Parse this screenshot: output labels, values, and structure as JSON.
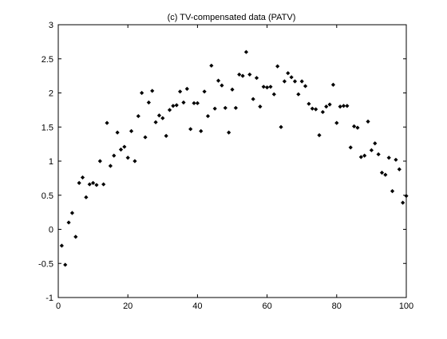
{
  "chart_data": {
    "type": "scatter",
    "title": "(c) TV-compensated data (PATV)",
    "xlabel": "",
    "ylabel": "",
    "xlim": [
      0,
      100
    ],
    "ylim": [
      -1,
      3
    ],
    "xticks": [
      0,
      20,
      40,
      60,
      80,
      100
    ],
    "yticks": [
      -1,
      -0.5,
      0,
      0.5,
      1,
      1.5,
      2,
      2.5,
      3
    ],
    "xtick_labels": [
      "0",
      "20",
      "40",
      "60",
      "80",
      "100"
    ],
    "ytick_labels": [
      "-1",
      "-0.5",
      "0",
      "0.5",
      "1",
      "1.5",
      "2",
      "2.5",
      "3"
    ],
    "grid": false,
    "legend": "none",
    "marker": "diamond",
    "color": "#000000",
    "series": [
      {
        "x": [
          1,
          2,
          3,
          4,
          5,
          6,
          7,
          8,
          9,
          10,
          11,
          12,
          13,
          14,
          15,
          16,
          17,
          18,
          19,
          20,
          21,
          22,
          23,
          24,
          25,
          26,
          27,
          28,
          29,
          30,
          31,
          32,
          33,
          34,
          35,
          36,
          37,
          38,
          39,
          40,
          41,
          42,
          43,
          44,
          45,
          46,
          47,
          48,
          49,
          50,
          51,
          52,
          53,
          54,
          55,
          56,
          57,
          58,
          59,
          60,
          61,
          62,
          63,
          64,
          65,
          66,
          67,
          68,
          69,
          70,
          71,
          72,
          73,
          74,
          75,
          76,
          77,
          78,
          79,
          80,
          81,
          82,
          83,
          84,
          85,
          86,
          87,
          88,
          89,
          90,
          91,
          92,
          93,
          94,
          95,
          96,
          97,
          98,
          99,
          100
        ],
        "y": [
          -0.24,
          -0.52,
          0.1,
          0.24,
          -0.11,
          0.68,
          0.76,
          0.47,
          0.66,
          0.68,
          0.65,
          1.0,
          0.66,
          1.56,
          0.93,
          1.08,
          1.42,
          1.17,
          1.21,
          1.05,
          1.44,
          1.0,
          1.66,
          2.0,
          1.35,
          1.86,
          2.03,
          1.57,
          1.67,
          1.63,
          1.37,
          1.75,
          1.81,
          1.82,
          2.02,
          1.86,
          2.06,
          1.47,
          1.85,
          1.85,
          1.44,
          2.02,
          1.66,
          2.4,
          1.77,
          2.18,
          2.11,
          1.78,
          1.42,
          2.05,
          1.78,
          2.27,
          2.25,
          2.6,
          2.27,
          1.91,
          2.22,
          1.8,
          2.09,
          2.08,
          2.09,
          1.98,
          2.39,
          1.5,
          2.17,
          2.29,
          2.23,
          2.17,
          1.98,
          2.17,
          2.1,
          1.84,
          1.77,
          1.76,
          1.38,
          1.72,
          1.8,
          1.83,
          2.12,
          1.56,
          1.8,
          1.81,
          1.81,
          1.2,
          1.51,
          1.49,
          1.06,
          1.08,
          1.58,
          1.16,
          1.26,
          1.1,
          0.83,
          0.8,
          1.05,
          0.56,
          1.02,
          0.88,
          0.39,
          0.49
        ]
      }
    ]
  }
}
